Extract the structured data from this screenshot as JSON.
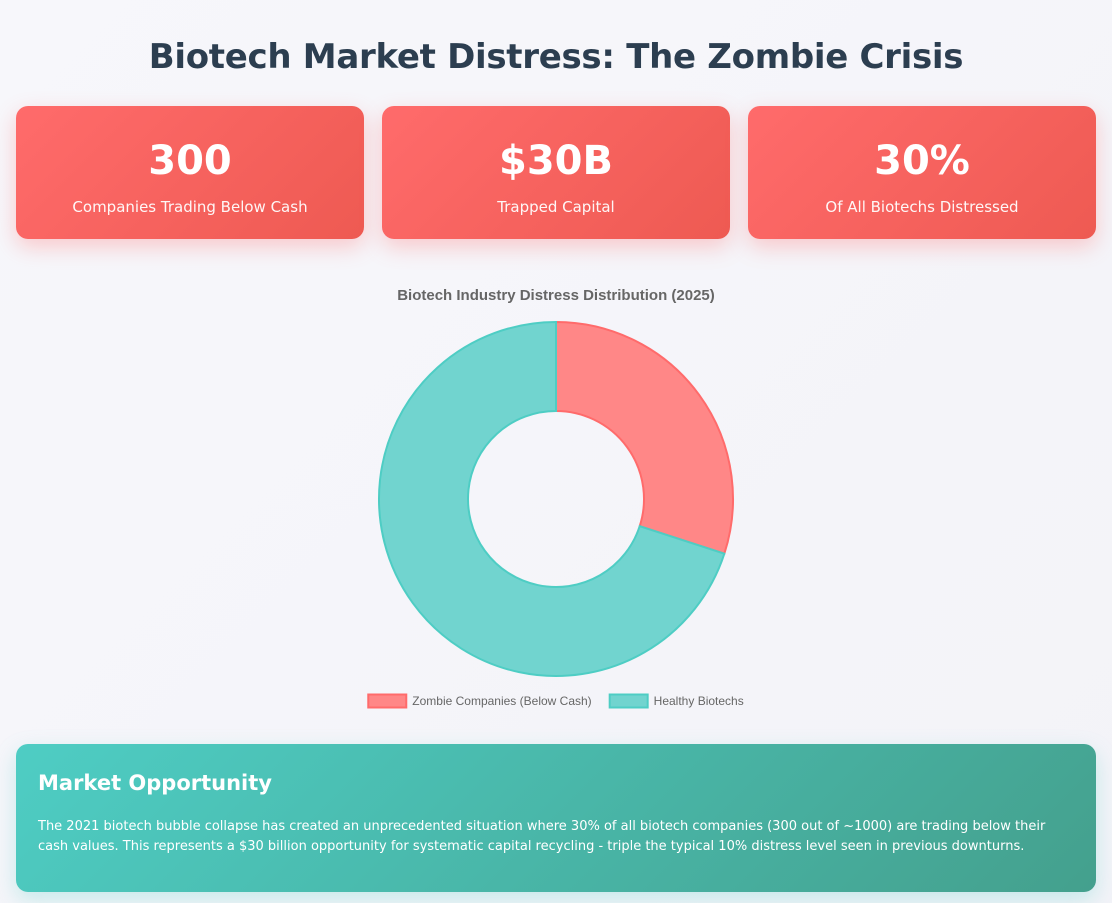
{
  "page": {
    "title": "Biotech Market Distress: The Zombie Crisis"
  },
  "stats": [
    {
      "value": "300",
      "label": "Companies Trading Below Cash"
    },
    {
      "value": "$30B",
      "label": "Trapped Capital"
    },
    {
      "value": "30%",
      "label": "Of All Biotechs Distressed"
    }
  ],
  "colors": {
    "distress": "#ff6b6b",
    "healthy": "#4ecdc4",
    "title": "#2c3e50"
  },
  "chart_data": {
    "type": "pie",
    "variant": "doughnut",
    "title": "Biotech Industry Distress Distribution (2025)",
    "categories": [
      "Zombie Companies (Below Cash)",
      "Healthy Biotechs"
    ],
    "values": [
      30,
      70
    ],
    "colors": [
      "#ff8787",
      "#71d4cf"
    ],
    "border_colors": [
      "#ff6b6b",
      "#4ecdc4"
    ],
    "legend_position": "bottom"
  },
  "opportunity": {
    "heading": "Market Opportunity",
    "text": "The 2021 biotech bubble collapse has created an unprecedented situation where 30% of all biotech companies (300 out of ~1000) are trading below their cash values. This represents a $30 billion opportunity for systematic capital recycling - triple the typical 10% distress level seen in previous downturns."
  }
}
